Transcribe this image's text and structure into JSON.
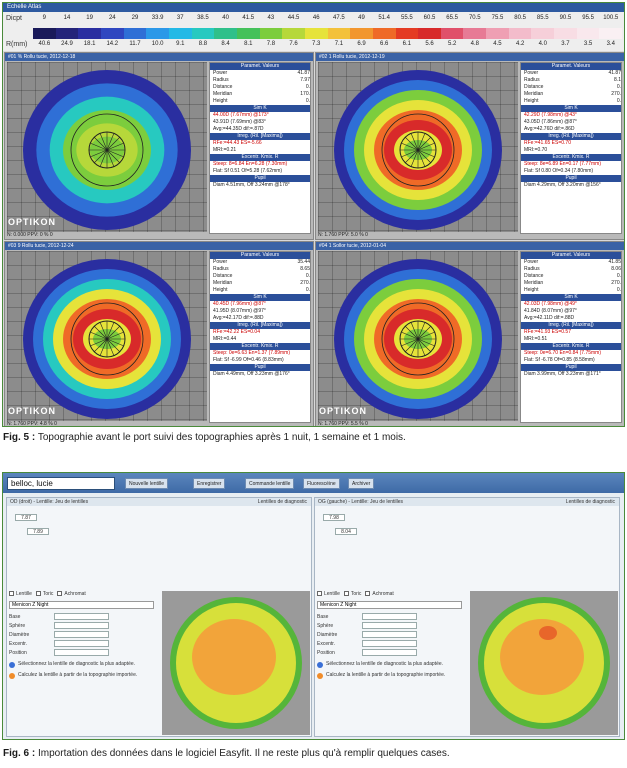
{
  "fig5": {
    "scale": {
      "header": "Echelle Atlas",
      "row1_label": "Dicpt",
      "row2_label": "R(mm)",
      "dioptres": [
        "9",
        "14",
        "19",
        "24",
        "29",
        "33.9",
        "37",
        "38.5",
        "40",
        "41.5",
        "43",
        "44.5",
        "46",
        "47.5",
        "49",
        "51.4",
        "55.5",
        "60.5",
        "65.5",
        "70.5",
        "75.5",
        "80.5",
        "85.5",
        "90.5",
        "95.5",
        "100.5"
      ],
      "radii": [
        "40.6",
        "24.9",
        "18.1",
        "14.2",
        "11.7",
        "10.0",
        "9.1",
        "8.8",
        "8.4",
        "8.1",
        "7.8",
        "7.6",
        "7.3",
        "7.1",
        "6.9",
        "6.6",
        "6.1",
        "5.6",
        "5.2",
        "4.8",
        "4.5",
        "4.2",
        "4.0",
        "3.7",
        "3.5",
        "3.4"
      ],
      "colors": [
        "#1a1a5a",
        "#24247a",
        "#2a2ea0",
        "#2f46c0",
        "#2f6fd6",
        "#2b98e8",
        "#23b9e6",
        "#27c9c0",
        "#2fc08a",
        "#44c15a",
        "#7ccd3d",
        "#b6d83a",
        "#e6e33a",
        "#f3c13a",
        "#f2962e",
        "#ef6a27",
        "#e43b23",
        "#d82a2a",
        "#e0506a",
        "#e77a95",
        "#ef9fb3",
        "#f3bccb",
        "#f6cfd9",
        "#f8dde4",
        "#f9e8ed",
        "#faf0f3"
      ]
    },
    "quads": [
      {
        "title": "#01 % Rollu tucie, 2012-12-18",
        "logo": "OPTIKON",
        "status": "N: 0.000  PPV: 0 %  0",
        "header1": "Paramet. Valeurs",
        "rows": [
          [
            "Power",
            "41.87"
          ],
          [
            "Radius",
            "7.97"
          ],
          [
            "Distance",
            "0."
          ],
          [
            "Meridian",
            "170."
          ],
          [
            "Height",
            "0."
          ]
        ],
        "sim_title": "Sim K",
        "sim": [
          "44.00D (7.67mm) @173°",
          "43.91D (7.69mm) @83°",
          "Avg:=44.35D  dif:=.87D"
        ],
        "irreg_title": "Irreg. (Ril. [Maxima])",
        "irreg": [
          "RFe:=44.43 ES=-5.66",
          "MRI:=0.21"
        ],
        "excent_title": "Excentr. Kmix. R",
        "excent": [
          "Steep: 8=6.84 En=6.28 (7.30mm)",
          "Flat: Sf 0.51 Of=5.28 (7.62mm)"
        ],
        "pupil_title": "Pupil",
        "pupil": "Diam 4.51mm, Off 3.24mm @178°"
      },
      {
        "title": "#02 1 Rollu tucie, 2012-12-19",
        "logo": "",
        "status": "N: 1.760  PPV: 5.0 %  0",
        "header1": "Paramet. Valeurs",
        "rows": [
          [
            "Power",
            "41.87"
          ],
          [
            "Radius",
            "8.1"
          ],
          [
            "Distance",
            "0."
          ],
          [
            "Meridian",
            "270."
          ],
          [
            "Height",
            "0."
          ]
        ],
        "sim_title": "Sim K",
        "sim": [
          "42.29D (7.98mm) @43°",
          "43.05D (7.86mm) @87°",
          "Avg:=42.76D  dif:=.86D"
        ],
        "irreg_title": "Irreg. (Ril. [Maxima])",
        "irreg": [
          "RFe:=41.65 ES=0.70",
          "MRI:=0.70"
        ],
        "excent_title": "Excentr. Kmix. R",
        "excent": [
          "Steep: 8e=6.89 En=0.17 (7.77mm)",
          "Flat: Sf 0.80 Of=0.34 (7.80mm)"
        ],
        "pupil_title": "Pupil",
        "pupil": "Diam 4.29mm, Off 3.20mm @156°"
      },
      {
        "title": "#03 9 Rollu tucie, 2012-12-24",
        "logo": "OPTIKON",
        "status": "N: 1.760  PPV: 4.8 %  0",
        "header1": "Paramet. Valeurs",
        "rows": [
          [
            "Power",
            "35.44"
          ],
          [
            "Radius",
            "8.65"
          ],
          [
            "Distance",
            "0."
          ],
          [
            "Meridian",
            "270."
          ],
          [
            "Height",
            "0."
          ]
        ],
        "sim_title": "Sim K",
        "sim": [
          "40.45D (7.96mm) @87°",
          "41.95D (8.07mm) @97°",
          "Avg:=42.17D  dif:=.88D"
        ],
        "irreg_title": "Irreg. (Ril. [Maxima])",
        "irreg": [
          "RFe:=42.22 ES=0.04",
          "MRI:=0.44"
        ],
        "excent_title": "Excentr. Kmix. R",
        "excent": [
          "Steep: 0e=6.63 En=1.37 (7.89mm)",
          "Flat: Sf -6.99 Of=0.46 (8.83mm)"
        ],
        "pupil_title": "Pupil",
        "pupil": "Diam 4.49mm, Off 3.23mm @176°"
      },
      {
        "title": "#04 1 Sollor tucie, 2012-01-04",
        "logo": "OPTIKON",
        "status": "N: 1.760  PPV: 5.5 %  0",
        "header1": "Paramet. Valeurs",
        "rows": [
          [
            "Power",
            "41.85"
          ],
          [
            "Radius",
            "8.06"
          ],
          [
            "Distance",
            "0."
          ],
          [
            "Meridian",
            "270."
          ],
          [
            "Height",
            "0."
          ]
        ],
        "sim_title": "Sim K",
        "sim": [
          "42.03D (7.98mm) @49°",
          "41.84D (8.07mm) @97°",
          "Avg:=42.11D  dif:=.88D"
        ],
        "irreg_title": "Irreg. (Ril. [Maxima])",
        "irreg": [
          "RFe:=41.93 ES=0.57",
          "MRI:=0.51"
        ],
        "excent_title": "Excentr. Kmix. R",
        "excent": [
          "Steep: 0e=6.70 En=0.84 (7.75mm)",
          "Flat: Sf -6.78 Of=0.85 (8.58mm)"
        ],
        "pupil_title": "Pupil",
        "pupil": "Diam 3.99mm, Off 3.23mm @171°"
      }
    ],
    "caption_label": "Fig. 5 :",
    "caption_text": " Topographie avant le port suivi des topographies après 1 nuit, 1 semaine et 1 mois."
  },
  "fig6": {
    "search_value": "belloc, lucie",
    "toolbar": [
      "Nouvelle lentille",
      "Enregistrer",
      "Commande lentille",
      "Fluorescéine",
      "Archiver"
    ],
    "panels": [
      {
        "header_left": "OD (droit) - Lentille: Jeu de lentilles",
        "header_right": "Lentilles de diagnostic",
        "k1": "7.87",
        "k2": "7.89",
        "tabs": [
          "Lentille",
          "Toric",
          "Achromat"
        ],
        "lens": "Menicon Z Night",
        "params": [
          "Base",
          "Sphère",
          "Diamètre",
          "Excentr.",
          "Position"
        ],
        "note1": "Sélectionnez la lentille de diagnostic la plus adaptée.",
        "note2": "Calculez la lentille à partir de la topographie importée."
      },
      {
        "header_left": "OG (gauche) - Lentille: Jeu de lentilles",
        "header_right": "Lentilles de diagnostic",
        "k1": "7.98",
        "k2": "8.04",
        "tabs": [
          "Lentille",
          "Toric",
          "Achromat"
        ],
        "lens": "Menicon Z Night",
        "params": [
          "Base",
          "Sphère",
          "Diamètre",
          "Excentr.",
          "Position"
        ],
        "note1": "Sélectionnez la lentille de diagnostic la plus adaptée.",
        "note2": "Calculez la lentille à partir de la topographie importée."
      }
    ],
    "caption_label": "Fig. 6 :",
    "caption_text": " Importation des données dans le logiciel Easyfit. Il ne reste plus qu'à remplir quelques cases."
  }
}
